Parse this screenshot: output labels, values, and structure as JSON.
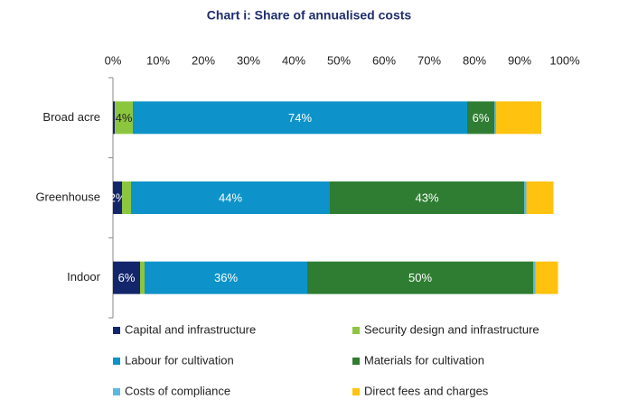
{
  "chart_data": {
    "type": "stacked-bar-horizontal",
    "title": "Chart i: Share of annualised costs",
    "categories": [
      "Broad acre",
      "Greenhouse",
      "Indoor"
    ],
    "series": [
      {
        "name": "Capital and infrastructure",
        "color": "#14266b",
        "values": [
          0.4,
          2,
          6
        ],
        "value_labels": [
          null,
          "2%",
          "6%"
        ]
      },
      {
        "name": "Security design and infrastructure",
        "color": "#8cc63f",
        "values": [
          4,
          2,
          1
        ],
        "value_labels": [
          "4%",
          null,
          null
        ]
      },
      {
        "name": "Labour for cultivation",
        "color": "#0d93c9",
        "values": [
          74,
          44,
          36
        ],
        "value_labels": [
          "74%",
          "44%",
          "36%"
        ]
      },
      {
        "name": "Materials for cultivation",
        "color": "#2f7d32",
        "values": [
          6,
          43,
          50
        ],
        "value_labels": [
          "6%",
          "43%",
          "50%"
        ]
      },
      {
        "name": "Costs of compliance",
        "color": "#5cb8e0",
        "values": [
          0.4,
          0.5,
          0.5
        ],
        "value_labels": [
          null,
          null,
          null
        ]
      },
      {
        "name": "Direct fees and charges",
        "color": "#ffc20e",
        "values": [
          10,
          6,
          5
        ],
        "value_labels": [
          null,
          null,
          null
        ]
      }
    ],
    "xlim": [
      0,
      100
    ],
    "xticks": [
      {
        "value": 0,
        "label": "0%"
      },
      {
        "value": 10,
        "label": "10%"
      },
      {
        "value": 20,
        "label": "20%"
      },
      {
        "value": 30,
        "label": "30%"
      },
      {
        "value": 40,
        "label": "40%"
      },
      {
        "value": 50,
        "label": "50%"
      },
      {
        "value": 60,
        "label": "60%"
      },
      {
        "value": 70,
        "label": "70%"
      },
      {
        "value": 80,
        "label": "80%"
      },
      {
        "value": 90,
        "label": "90%"
      },
      {
        "value": 100,
        "label": "100%"
      }
    ]
  }
}
